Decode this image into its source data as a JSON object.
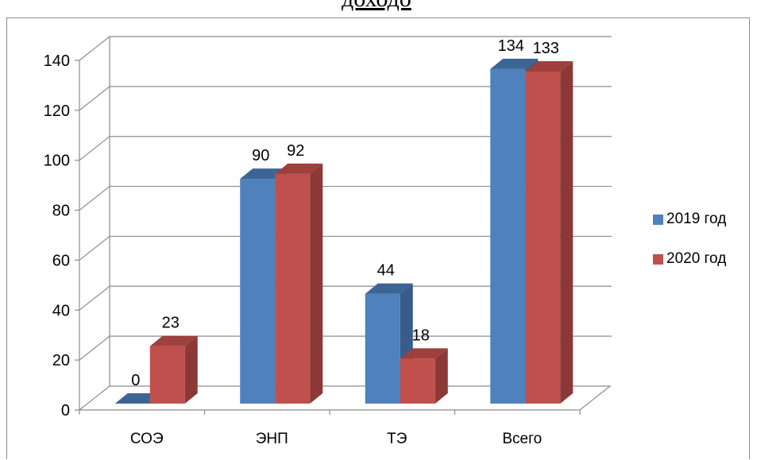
{
  "header": {
    "title": "доходо"
  },
  "chart_data": {
    "type": "bar",
    "categories": [
      "СОЭ",
      "ЭНП",
      "ТЭ",
      "Всего"
    ],
    "series": [
      {
        "name": "2019 год",
        "values": [
          0,
          90,
          44,
          134
        ],
        "color": "#4f81bd",
        "side_color": "#385d8a",
        "top_color": "#3c6594"
      },
      {
        "name": "2020 год",
        "values": [
          23,
          92,
          18,
          133
        ],
        "color": "#c0504d",
        "side_color": "#8c3836",
        "top_color": "#9e403d"
      }
    ],
    "yticks": [
      "0",
      "20",
      "40",
      "60",
      "80",
      "100",
      "120",
      "140"
    ],
    "ylim": [
      0,
      140
    ],
    "grid": true,
    "legend_position": "right",
    "data_labels": true
  }
}
